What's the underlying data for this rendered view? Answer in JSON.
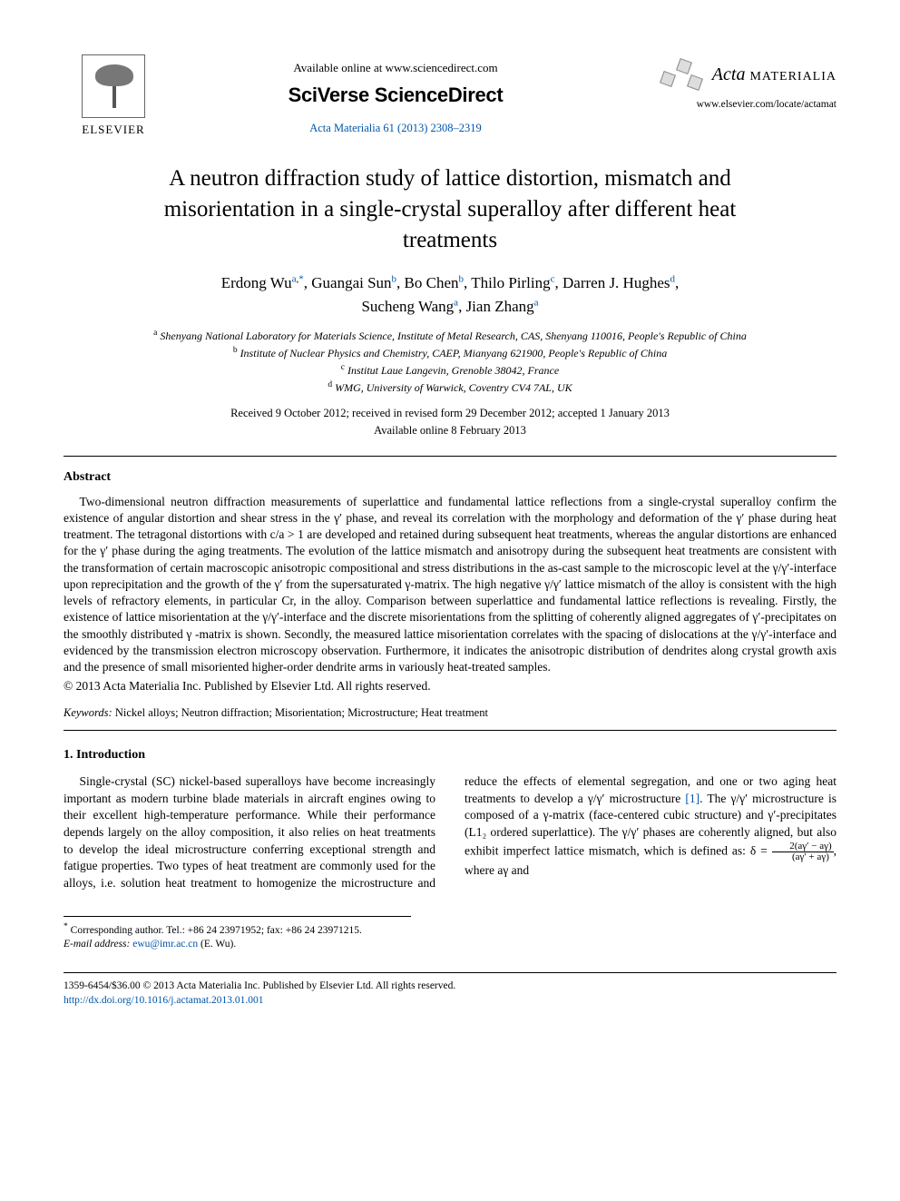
{
  "header": {
    "publisher": "ELSEVIER",
    "available_line": "Available online at www.sciencedirect.com",
    "platform": "SciVerse ScienceDirect",
    "citation": "Acta Materialia 61 (2013) 2308–2319",
    "journal_name_italic": "Acta",
    "journal_name_caps": "MATERIALIA",
    "journal_url": "www.elsevier.com/locate/actamat"
  },
  "title": "A neutron diffraction study of lattice distortion, mismatch and misorientation in a single-crystal superalloy after different heat treatments",
  "authors": [
    {
      "name": "Erdong Wu",
      "aff": "a",
      "corr": true
    },
    {
      "name": "Guangai Sun",
      "aff": "b",
      "corr": false
    },
    {
      "name": "Bo Chen",
      "aff": "b",
      "corr": false
    },
    {
      "name": "Thilo Pirling",
      "aff": "c",
      "corr": false
    },
    {
      "name": "Darren J. Hughes",
      "aff": "d",
      "corr": false
    },
    {
      "name": "Sucheng Wang",
      "aff": "a",
      "corr": false
    },
    {
      "name": "Jian Zhang",
      "aff": "a",
      "corr": false
    }
  ],
  "affiliations": {
    "a": "Shenyang National Laboratory for Materials Science, Institute of Metal Research, CAS, Shenyang 110016, People's Republic of China",
    "b": "Institute of Nuclear Physics and Chemistry, CAEP, Mianyang 621900, People's Republic of China",
    "c": "Institut Laue Langevin, Grenoble 38042, France",
    "d": "WMG, University of Warwick, Coventry CV4 7AL, UK"
  },
  "dates": {
    "received": "Received 9 October 2012; received in revised form 29 December 2012; accepted 1 January 2013",
    "online": "Available online 8 February 2013"
  },
  "abstract": {
    "heading": "Abstract",
    "body": "Two-dimensional neutron diffraction measurements of superlattice and fundamental lattice reflections from a single-crystal superalloy confirm the existence of angular distortion and shear stress in the γ′ phase, and reveal its correlation with the morphology and deformation of the γ′ phase during heat treatment. The tetragonal distortions with c/a > 1 are developed and retained during subsequent heat treatments, whereas the angular distortions are enhanced for the γ′ phase during the aging treatments. The evolution of the lattice mismatch and anisotropy during the subsequent heat treatments are consistent with the transformation of certain macroscopic anisotropic compositional and stress distributions in the as-cast sample to the microscopic level at the γ/γ′-interface upon reprecipitation and the growth of the γ′ from the supersaturated γ-matrix. The high negative γ/γ′ lattice mismatch of the alloy is consistent with the high levels of refractory elements, in particular Cr, in the alloy. Comparison between superlattice and fundamental lattice reflections is revealing. Firstly, the existence of lattice misorientation at the γ/γ′-interface and the discrete misorientations from the splitting of coherently aligned aggregates of γ′-precipitates on the smoothly distributed γ -matrix is shown. Secondly, the measured lattice misorientation correlates with the spacing of dislocations at the γ/γ′-interface and evidenced by the transmission electron microscopy observation. Furthermore, it indicates the anisotropic distribution of dendrites along crystal growth axis and the presence of small misoriented higher-order dendrite arms in variously heat-treated samples.",
    "copyright": "© 2013 Acta Materialia Inc. Published by Elsevier Ltd. All rights reserved."
  },
  "keywords": {
    "label": "Keywords:",
    "list": "Nickel alloys; Neutron diffraction; Misorientation; Microstructure; Heat treatment"
  },
  "intro": {
    "heading": "1. Introduction",
    "p1": "Single-crystal (SC) nickel-based superalloys have become increasingly important as modern turbine blade materials in aircraft engines owing to their excellent high-temperature performance. While their performance depends largely on the alloy composition, it also relies on heat treatments to develop the ideal microstructure",
    "p2_a": "conferring exceptional strength and fatigue properties. Two types of heat treatment are commonly used for the alloys, i.e. solution heat treatment to homogenize the microstructure and reduce the effects of elemental segregation, and one or two aging heat treatments to develop a γ/γ′ microstructure ",
    "ref1": "[1]",
    "p2_b": ". The γ/γ′ microstructure is composed of a γ-matrix (face-centered cubic structure) and γ′-precipitates (L1₂ ordered superlattice). The γ/γ′ phases are coherently aligned, but also exhibit imperfect lattice mismatch, which is defined as: δ = ",
    "frac_num": "2(aγ′ − aγ)",
    "frac_den": "(aγ′ + aγ)",
    "p2_c": ", where aγ and"
  },
  "footnote": {
    "corr_line": "Corresponding author. Tel.: +86 24 23971952; fax: +86 24 23971215.",
    "email_label": "E-mail address:",
    "email": "ewu@imr.ac.cn",
    "email_who": "(E. Wu)."
  },
  "footer": {
    "issn_line": "1359-6454/$36.00 © 2013 Acta Materialia Inc. Published by Elsevier Ltd. All rights reserved.",
    "doi": "http://dx.doi.org/10.1016/j.actamat.2013.01.001"
  },
  "colors": {
    "link": "#0055aa",
    "text": "#000000",
    "background": "#ffffff",
    "rule": "#000000"
  }
}
